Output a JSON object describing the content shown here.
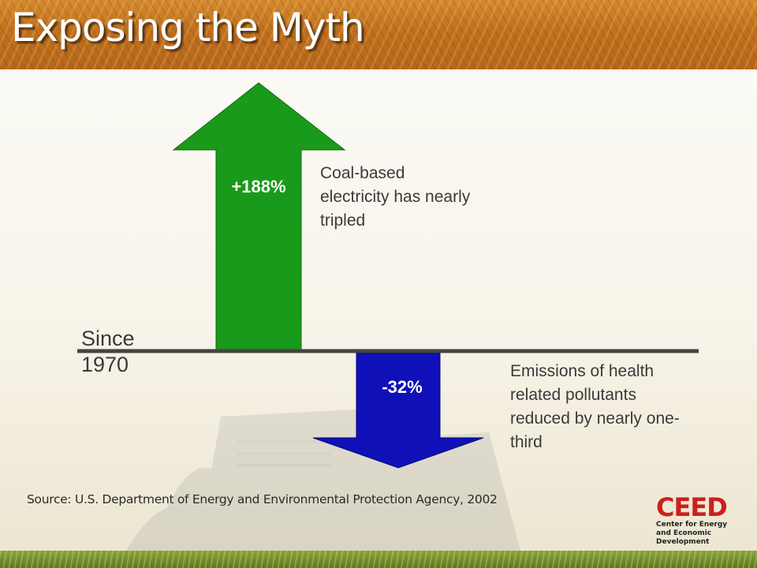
{
  "slide": {
    "title": "Exposing the Myth",
    "baseline_label": "Since 1970",
    "increase": {
      "value": "+188%",
      "description": "Coal-based electricity has nearly tripled",
      "color": "#1a9a1a"
    },
    "decrease": {
      "value": "-32%",
      "description": "Emissions of health related pollutants reduced by nearly one-third",
      "color": "#1010b8"
    },
    "source": "Source:  U.S. Department of Energy and Environmental Protection Agency, 2002",
    "logo": {
      "mark": "CEED",
      "subtitle": "Center for Energy and Economic Development"
    }
  },
  "colors": {
    "header": "#c0701e",
    "accent_red": "#cc1f1f",
    "baseline": "#444444"
  }
}
